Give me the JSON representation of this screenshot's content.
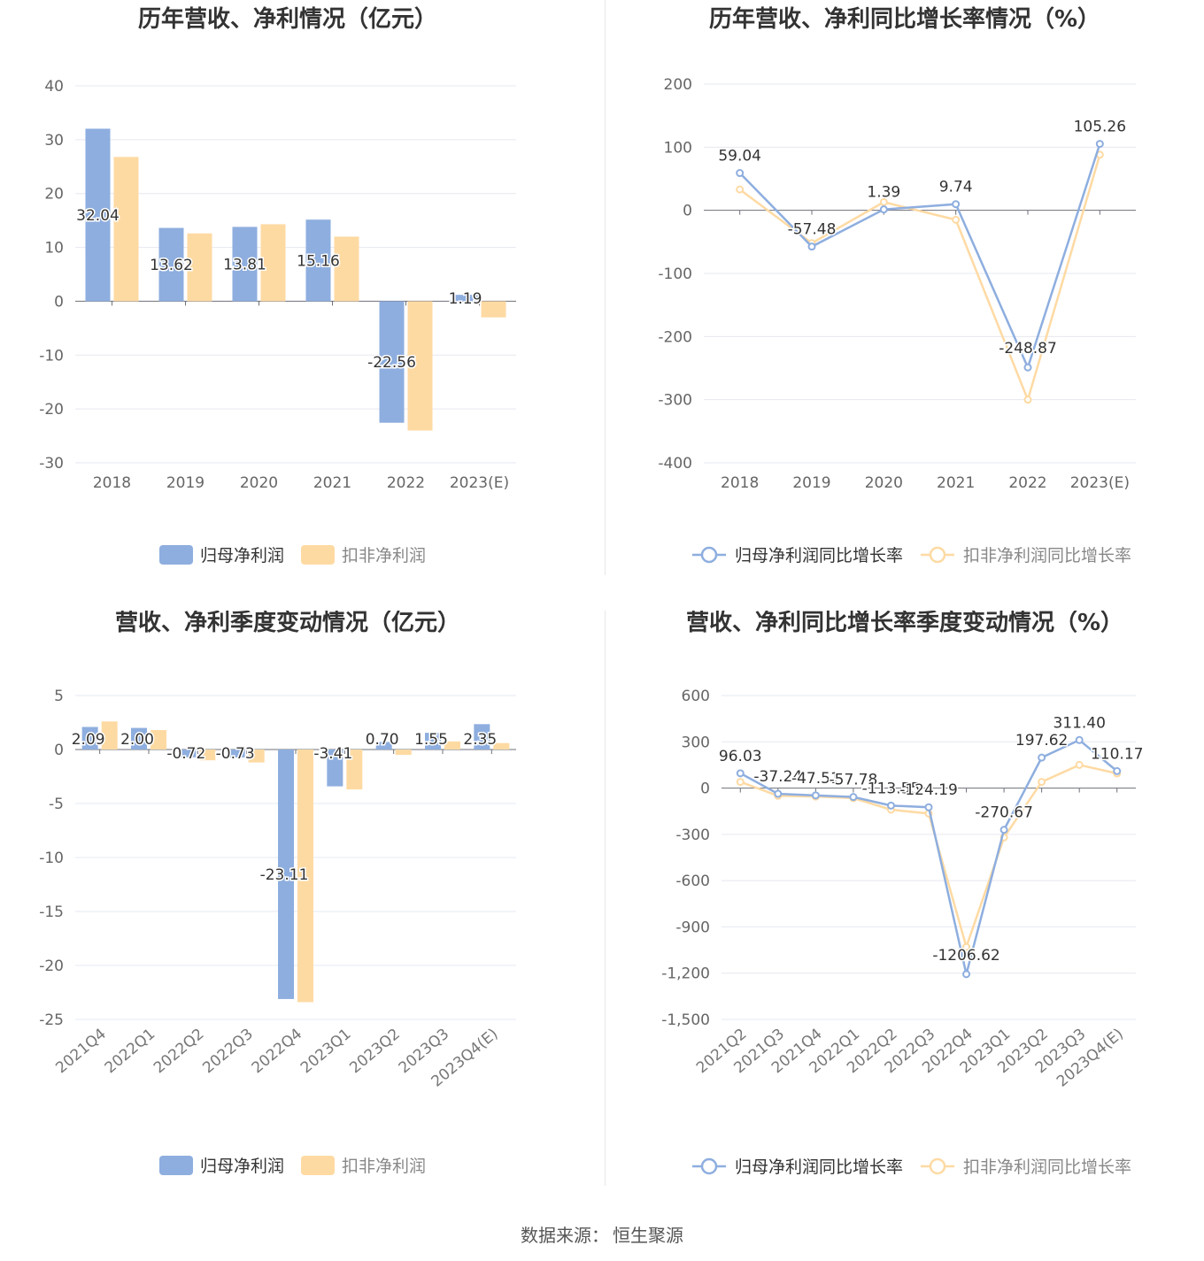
{
  "source": {
    "label": "数据来源：",
    "value": "恒生聚源"
  },
  "chart_data": [
    {
      "id": "annual-profit",
      "type": "bar",
      "title": "历年营收、净利情况（亿元）",
      "categories": [
        "2018",
        "2019",
        "2020",
        "2021",
        "2022",
        "2023(E)"
      ],
      "ylim": [
        -30,
        40
      ],
      "yticks": [
        -30,
        -20,
        -10,
        0,
        10,
        20,
        30,
        40
      ],
      "ytick_labels": [
        "-30",
        "-20",
        "-10",
        "0",
        "10",
        "20",
        "30",
        "40"
      ],
      "series": [
        {
          "name": "归母净利润",
          "color": "#8eaedf",
          "values": [
            32.04,
            13.62,
            13.81,
            15.16,
            -22.56,
            1.19
          ],
          "labels": [
            "32.04",
            "13.62",
            "13.81",
            "15.16",
            "-22.56",
            "1.19"
          ]
        },
        {
          "name": "扣非净利润",
          "color": "#fedaa3",
          "values": [
            26.8,
            12.6,
            14.3,
            12.0,
            -24.0,
            -3.0
          ]
        }
      ]
    },
    {
      "id": "annual-growth",
      "type": "line",
      "title": "历年营收、净利同比增长率情况（%）",
      "categories": [
        "2018",
        "2019",
        "2020",
        "2021",
        "2022",
        "2023(E)"
      ],
      "ylim": [
        -400,
        200
      ],
      "yticks": [
        -400,
        -300,
        -200,
        -100,
        0,
        100,
        200
      ],
      "ytick_labels": [
        "-400",
        "-300",
        "-200",
        "-100",
        "0",
        "100",
        "200"
      ],
      "series": [
        {
          "name": "归母净利润同比增长率",
          "color": "#8eaedf",
          "values": [
            59.04,
            -57.48,
            1.39,
            9.74,
            -248.87,
            105.26
          ],
          "labels": [
            "59.04",
            "-57.48",
            "1.39",
            "9.74",
            "-248.87",
            "105.26"
          ]
        },
        {
          "name": "扣非净利润同比增长率",
          "color": "#fedaa3",
          "values": [
            33,
            -52,
            13,
            -15,
            -300,
            88
          ]
        }
      ]
    },
    {
      "id": "quarterly-profit",
      "type": "bar",
      "title": "营收、净利季度变动情况（亿元）",
      "categories": [
        "2021Q4",
        "2022Q1",
        "2022Q2",
        "2022Q3",
        "2022Q4",
        "2023Q1",
        "2023Q2",
        "2023Q3",
        "2023Q4(E)"
      ],
      "ylim": [
        -25,
        5
      ],
      "yticks": [
        -25,
        -20,
        -15,
        -10,
        -5,
        0,
        5
      ],
      "ytick_labels": [
        "-25",
        "-20",
        "-15",
        "-10",
        "-5",
        "0",
        "5"
      ],
      "series": [
        {
          "name": "归母净利润",
          "color": "#8eaedf",
          "values": [
            2.09,
            2.0,
            -0.72,
            -0.73,
            -23.11,
            -3.41,
            0.7,
            1.55,
            2.35
          ],
          "labels": [
            "2.09",
            "2.00",
            "-0.72",
            "-0.73",
            "-23.11",
            "-3.41",
            "0.70",
            "1.55",
            "2.35"
          ]
        },
        {
          "name": "扣非净利润",
          "color": "#fedaa3",
          "values": [
            2.6,
            1.8,
            -1.0,
            -1.2,
            -23.4,
            -3.7,
            -0.5,
            0.75,
            0.6
          ]
        }
      ]
    },
    {
      "id": "quarterly-growth",
      "type": "line",
      "title": "营收、净利同比增长率季度变动情况（%）",
      "categories": [
        "2021Q2",
        "2021Q3",
        "2021Q4",
        "2022Q1",
        "2022Q2",
        "2022Q3",
        "2022Q4",
        "2023Q1",
        "2023Q2",
        "2023Q3",
        "2023Q4(E)"
      ],
      "ylim": [
        -1500,
        600
      ],
      "yticks": [
        -1500,
        -1200,
        -900,
        -600,
        -300,
        0,
        300,
        600
      ],
      "ytick_labels": [
        "-1,500",
        "-1,200",
        "-900",
        "-600",
        "-300",
        "0",
        "300",
        "600"
      ],
      "series": [
        {
          "name": "归母净利润同比增长率",
          "color": "#8eaedf",
          "values": [
            96.03,
            -37.24,
            -47.51,
            -57.78,
            -113.55,
            -124.19,
            -1206.62,
            -270.67,
            197.62,
            311.4,
            110.17
          ],
          "labels": [
            "96.03",
            "-37.24",
            "-47.51",
            "-57.78",
            "-113.55",
            "-124.19",
            "-1206.62",
            "-270.67",
            "197.62",
            "311.40",
            "110.17"
          ]
        },
        {
          "name": "扣非净利润同比增长率",
          "color": "#fedaa3",
          "values": [
            40,
            -50,
            -55,
            -65,
            -140,
            -165,
            -1030,
            -320,
            40,
            150,
            95
          ]
        }
      ]
    }
  ]
}
